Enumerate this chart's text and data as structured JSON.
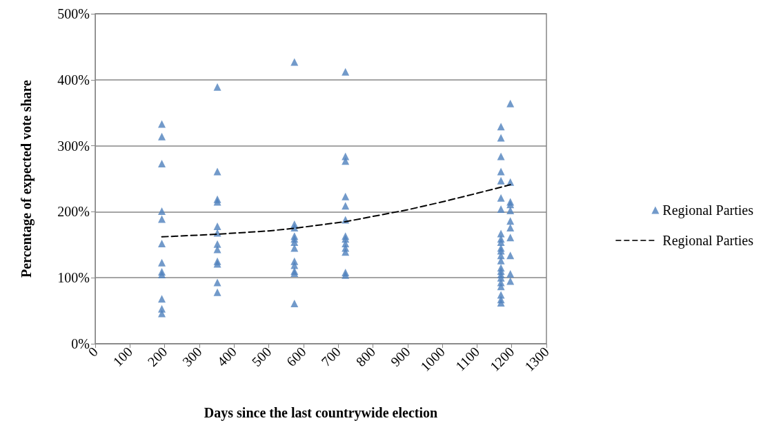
{
  "chart_data": {
    "type": "scatter",
    "xlabel": "Days since the last countrywide election",
    "ylabel": "Percentage of expected vote share",
    "xlim": [
      0,
      1300
    ],
    "xticks": [
      0,
      100,
      200,
      300,
      400,
      500,
      600,
      700,
      800,
      900,
      1000,
      1100,
      1200,
      1300
    ],
    "ylim": [
      0,
      500
    ],
    "yticks": [
      {
        "value": 0,
        "label": "0%"
      },
      {
        "value": 100,
        "label": "100%"
      },
      {
        "value": 200,
        "label": "200%"
      },
      {
        "value": 300,
        "label": "300%"
      },
      {
        "value": 400,
        "label": "400%"
      },
      {
        "value": 500,
        "label": "500%"
      }
    ],
    "grid": "y",
    "legend": "right",
    "series": [
      {
        "name": "Regional Parties",
        "type": "scatter",
        "color": "#4f81bd",
        "marker": "triangle",
        "x": [
          192,
          192,
          192,
          192,
          192,
          192,
          192,
          192,
          192,
          192,
          192,
          192,
          352,
          352,
          352,
          352,
          352,
          352,
          352,
          352,
          352,
          352,
          352,
          352,
          574,
          574,
          574,
          574,
          574,
          574,
          574,
          574,
          574,
          574,
          574,
          574,
          721,
          721,
          721,
          721,
          721,
          721,
          721,
          721,
          721,
          721,
          721,
          721,
          721,
          1169,
          1169,
          1169,
          1169,
          1169,
          1169,
          1169,
          1169,
          1169,
          1169,
          1169,
          1169,
          1169,
          1169,
          1169,
          1169,
          1169,
          1169,
          1169,
          1169,
          1169,
          1169,
          1169,
          1196,
          1196,
          1196,
          1196,
          1196,
          1196,
          1196,
          1196,
          1196,
          1196,
          1196
        ],
        "values": [
          333,
          314,
          273,
          201,
          189,
          152,
          123,
          109,
          105,
          68,
          53,
          46,
          389,
          261,
          219,
          215,
          178,
          168,
          151,
          143,
          125,
          121,
          93,
          78,
          427,
          181,
          176,
          163,
          159,
          154,
          145,
          125,
          119,
          110,
          107,
          61,
          412,
          284,
          277,
          223,
          209,
          188,
          163,
          159,
          152,
          145,
          139,
          108,
          104,
          329,
          312,
          284,
          261,
          247,
          221,
          204,
          167,
          159,
          154,
          145,
          141,
          134,
          126,
          115,
          110,
          105,
          100,
          93,
          87,
          74,
          67,
          62,
          364,
          245,
          215,
          211,
          202,
          186,
          176,
          161,
          134,
          106,
          95
        ]
      },
      {
        "name": "Regional Parties",
        "type": "line",
        "color": "#000000",
        "line_style": "dashed",
        "marker": "none",
        "x": [
          192,
          352,
          500,
          574,
          721,
          900,
          1000,
          1100,
          1196
        ],
        "values": [
          162,
          166,
          171,
          175,
          185,
          203,
          215,
          228,
          241
        ]
      }
    ]
  }
}
